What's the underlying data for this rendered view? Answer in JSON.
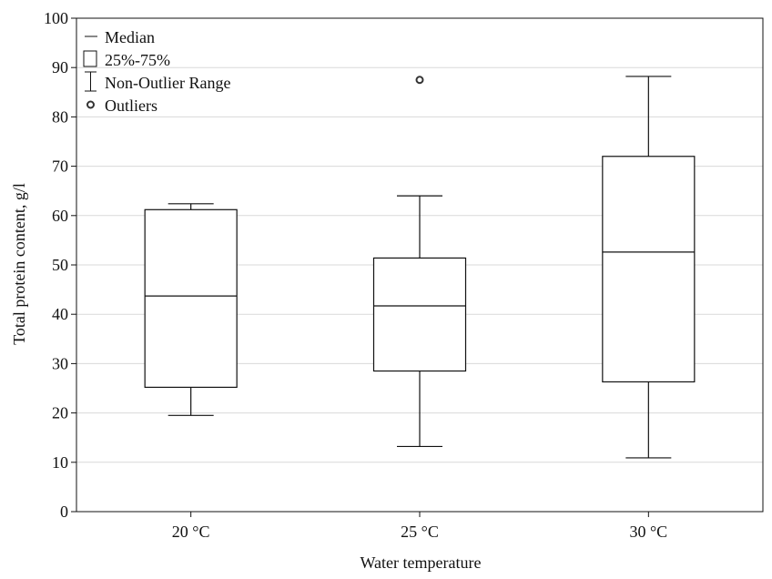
{
  "chart_data": {
    "type": "box",
    "title": "",
    "xlabel": "Water temperature",
    "ylabel": "Total protein content, g/l",
    "ylim": [
      0,
      100
    ],
    "yticks": [
      0,
      10,
      20,
      30,
      40,
      50,
      60,
      70,
      80,
      90,
      100
    ],
    "grid": true,
    "legend_position": "top-left",
    "legend": {
      "median": "Median",
      "box": "25%-75%",
      "whisker": "Non-Outlier Range",
      "outlier": "Outliers"
    },
    "categories": [
      "20 °C",
      "25 °C",
      "30 °C"
    ],
    "boxes": [
      {
        "category": "20 °C",
        "min": 19.5,
        "q1": 25.2,
        "median": 43.7,
        "q3": 61.2,
        "max": 62.4,
        "outliers": []
      },
      {
        "category": "25 °C",
        "min": 13.2,
        "q1": 28.5,
        "median": 41.7,
        "q3": 51.4,
        "max": 64.0,
        "outliers": [
          87.5
        ]
      },
      {
        "category": "30 °C",
        "min": 10.9,
        "q1": 26.3,
        "median": 52.6,
        "q3": 72.0,
        "max": 88.2,
        "outliers": []
      }
    ],
    "colors": {
      "box_stroke": "#111111",
      "box_fill": "#ffffff",
      "grid": "#d9d9d9",
      "outlier": "#333333"
    }
  }
}
